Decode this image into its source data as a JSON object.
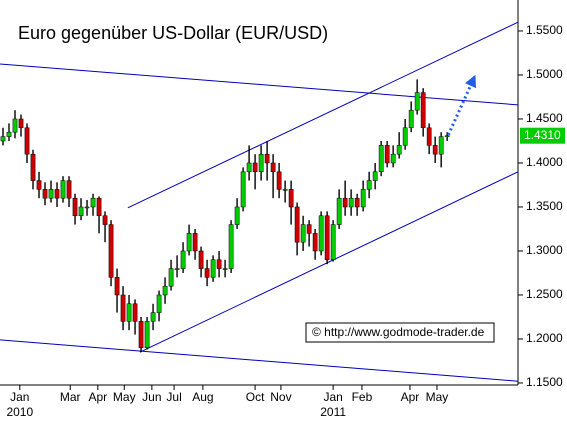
{
  "chart_data": {
    "type": "candlestick",
    "title": "Euro gegenüber US-Dollar  (EUR/USD)",
    "source": "© http://www.godmode-trader.de",
    "last_label": "1.4310",
    "up_color": "#00cc00",
    "down_color": "#cc0000",
    "line_color": "#0000bb",
    "xlim": [
      -0.5,
      85.8
    ],
    "ylim": [
      1.1477,
      1.5852
    ],
    "yticks": [
      {
        "value": 1.15,
        "label": "1.1500"
      },
      {
        "value": 1.2,
        "label": "1.2000"
      },
      {
        "value": 1.25,
        "label": "1.2500"
      },
      {
        "value": 1.3,
        "label": "1.3000"
      },
      {
        "value": 1.35,
        "label": "1.3500"
      },
      {
        "value": 1.4,
        "label": "1.4000"
      },
      {
        "value": 1.45,
        "label": "1.4500"
      },
      {
        "value": 1.5,
        "label": "1.5000"
      },
      {
        "value": 1.55,
        "label": "1.5500"
      }
    ],
    "xticks": [
      {
        "value": 2.8,
        "label": "Jan",
        "year": "2010"
      },
      {
        "value": 11.2,
        "label": "Mar"
      },
      {
        "value": 15.8,
        "label": "Apr"
      },
      {
        "value": 20.2,
        "label": "May"
      },
      {
        "value": 24.8,
        "label": "Jun"
      },
      {
        "value": 28.5,
        "label": "Jul"
      },
      {
        "value": 33.3,
        "label": "Aug"
      },
      {
        "value": 42,
        "label": "Oct"
      },
      {
        "value": 46.3,
        "label": "Nov"
      },
      {
        "value": 55,
        "label": "Jan",
        "year": "2011"
      },
      {
        "value": 59.8,
        "label": "Feb"
      },
      {
        "value": 67.8,
        "label": "Apr"
      },
      {
        "value": 72.3,
        "label": "May"
      }
    ],
    "open": [
      1.425,
      1.43,
      1.435,
      1.45,
      1.44,
      1.41,
      1.38,
      1.37,
      1.36,
      1.37,
      1.36,
      1.38,
      1.36,
      1.34,
      1.35,
      1.35,
      1.36,
      1.34,
      1.33,
      1.27,
      1.25,
      1.22,
      1.24,
      1.22,
      1.19,
      1.22,
      1.23,
      1.25,
      1.26,
      1.28,
      1.28,
      1.3,
      1.32,
      1.3,
      1.28,
      1.27,
      1.29,
      1.28,
      1.28,
      1.33,
      1.35,
      1.39,
      1.4,
      1.39,
      1.41,
      1.4,
      1.39,
      1.37,
      1.37,
      1.35,
      1.31,
      1.33,
      1.32,
      1.3,
      1.34,
      1.29,
      1.33,
      1.36,
      1.35,
      1.36,
      1.35,
      1.37,
      1.38,
      1.39,
      1.42,
      1.4,
      1.41,
      1.42,
      1.44,
      1.46,
      1.48,
      1.44,
      1.42,
      1.41,
      1.43
    ],
    "high": [
      1.44,
      1.445,
      1.46,
      1.455,
      1.445,
      1.415,
      1.39,
      1.378,
      1.38,
      1.378,
      1.385,
      1.385,
      1.365,
      1.36,
      1.358,
      1.365,
      1.362,
      1.345,
      1.335,
      1.28,
      1.26,
      1.25,
      1.245,
      1.225,
      1.225,
      1.24,
      1.255,
      1.27,
      1.29,
      1.295,
      1.31,
      1.33,
      1.325,
      1.305,
      1.29,
      1.295,
      1.3,
      1.29,
      1.335,
      1.36,
      1.395,
      1.42,
      1.41,
      1.42,
      1.425,
      1.41,
      1.4,
      1.38,
      1.38,
      1.355,
      1.34,
      1.335,
      1.325,
      1.345,
      1.345,
      1.335,
      1.37,
      1.38,
      1.37,
      1.365,
      1.38,
      1.39,
      1.4,
      1.425,
      1.425,
      1.42,
      1.435,
      1.45,
      1.47,
      1.495,
      1.485,
      1.445,
      1.43,
      1.435,
      1.435
    ],
    "low": [
      1.42,
      1.425,
      1.428,
      1.43,
      1.4,
      1.37,
      1.36,
      1.352,
      1.355,
      1.35,
      1.355,
      1.35,
      1.33,
      1.335,
      1.34,
      1.34,
      1.32,
      1.31,
      1.26,
      1.23,
      1.21,
      1.21,
      1.205,
      1.185,
      1.188,
      1.21,
      1.22,
      1.24,
      1.255,
      1.27,
      1.275,
      1.295,
      1.29,
      1.27,
      1.26,
      1.265,
      1.27,
      1.27,
      1.275,
      1.325,
      1.345,
      1.38,
      1.37,
      1.38,
      1.38,
      1.36,
      1.36,
      1.355,
      1.33,
      1.295,
      1.3,
      1.305,
      1.29,
      1.295,
      1.285,
      1.288,
      1.325,
      1.34,
      1.34,
      1.34,
      1.345,
      1.36,
      1.37,
      1.385,
      1.395,
      1.395,
      1.405,
      1.415,
      1.435,
      1.455,
      1.43,
      1.41,
      1.4,
      1.395,
      1.425
    ],
    "close": [
      1.43,
      1.435,
      1.45,
      1.44,
      1.41,
      1.38,
      1.37,
      1.36,
      1.37,
      1.36,
      1.38,
      1.36,
      1.34,
      1.35,
      1.35,
      1.36,
      1.34,
      1.33,
      1.27,
      1.25,
      1.22,
      1.24,
      1.22,
      1.19,
      1.22,
      1.23,
      1.25,
      1.26,
      1.28,
      1.28,
      1.3,
      1.32,
      1.3,
      1.28,
      1.27,
      1.29,
      1.28,
      1.28,
      1.33,
      1.35,
      1.39,
      1.4,
      1.39,
      1.41,
      1.4,
      1.39,
      1.37,
      1.37,
      1.35,
      1.31,
      1.33,
      1.32,
      1.3,
      1.34,
      1.29,
      1.33,
      1.36,
      1.35,
      1.36,
      1.35,
      1.37,
      1.38,
      1.39,
      1.42,
      1.4,
      1.41,
      1.42,
      1.44,
      1.46,
      1.48,
      1.44,
      1.42,
      1.41,
      1.43,
      1.431
    ],
    "trendlines": [
      {
        "x": [
          -0.5,
          85.8
        ],
        "y": [
          1.5125,
          1.466
        ]
      },
      {
        "x": [
          -0.5,
          85.8
        ],
        "y": [
          1.199,
          1.152
        ]
      },
      {
        "x": [
          20.8,
          85.8
        ],
        "y": [
          1.349,
          1.56
        ]
      },
      {
        "x": [
          22.8,
          85.8
        ],
        "y": [
          1.185,
          1.39
        ]
      }
    ],
    "arrow": {
      "x": [
        74.2,
        78.3
      ],
      "y": [
        1.432,
        1.494
      ]
    }
  }
}
